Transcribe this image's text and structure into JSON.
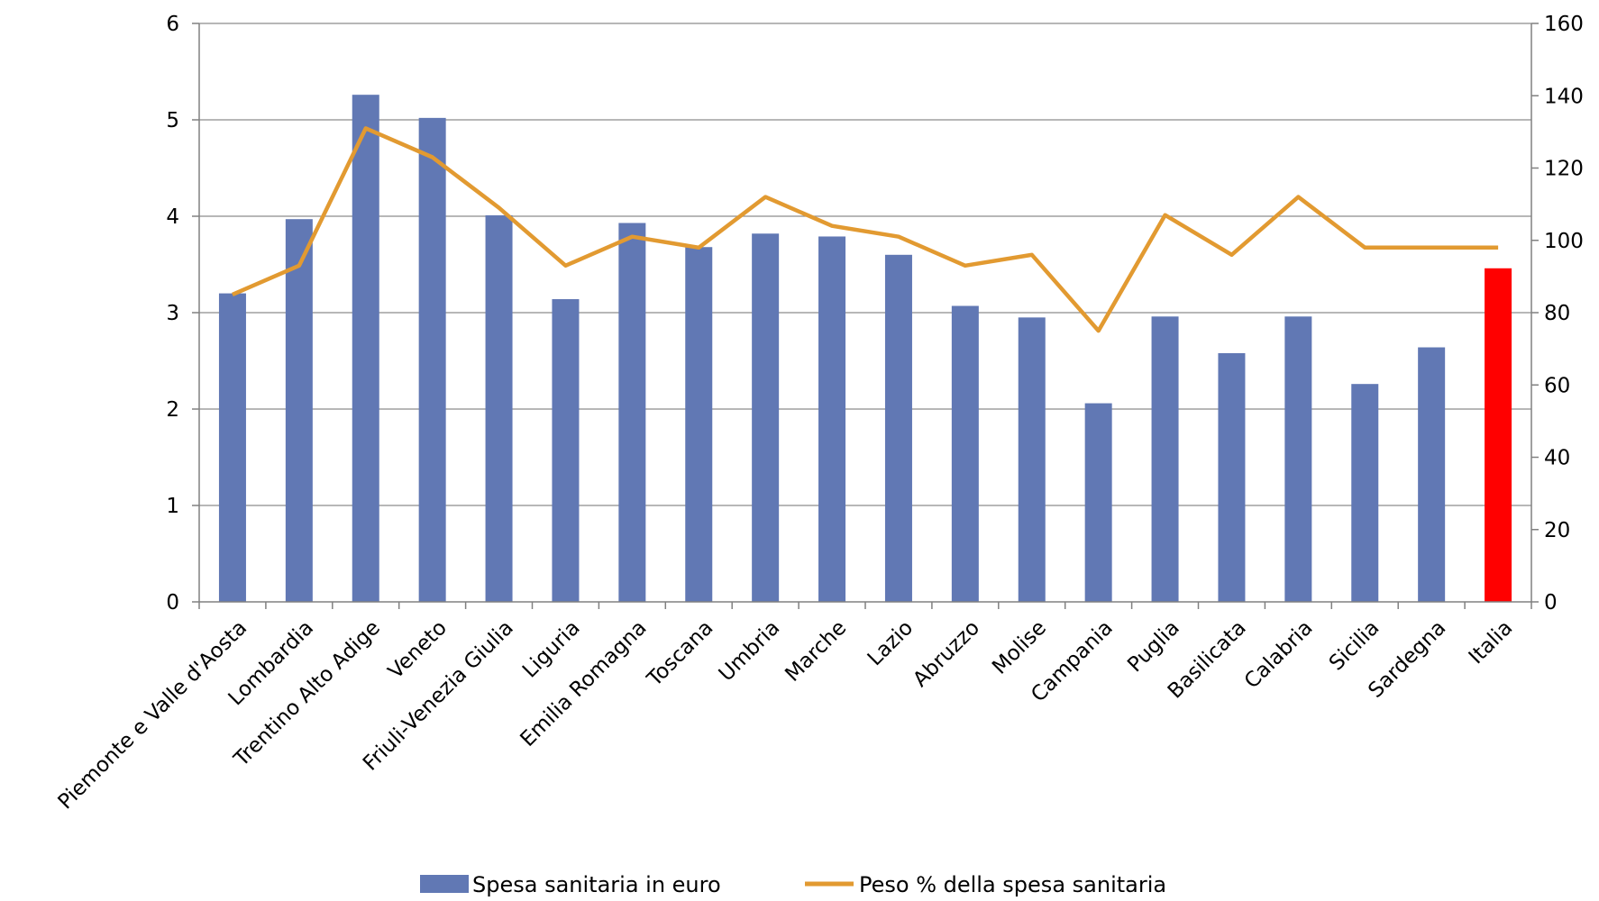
{
  "chart_data": {
    "type": "bar",
    "categories": [
      "Piemonte e Valle d'Aosta",
      "Lombardia",
      "Trentino Alto Adige",
      "Veneto",
      "Friuli-Venezia Giulia",
      "Liguria",
      "Emilia Romagna",
      "Toscana",
      "Umbria",
      "Marche",
      "Lazio",
      "Abruzzo",
      "Molise",
      "Campania",
      "Puglia",
      "Basilicata",
      "Calabria",
      "Sicilia",
      "Sardegna",
      "Italia"
    ],
    "series": [
      {
        "name": "Spesa sanitaria in euro",
        "type": "bar",
        "axis": "left",
        "color": "#6178B4",
        "highlight_color": "#FF0000",
        "highlight_index": 19,
        "values": [
          3.2,
          3.97,
          5.26,
          5.02,
          4.01,
          3.14,
          3.93,
          3.68,
          3.82,
          3.79,
          3.6,
          3.07,
          2.95,
          2.06,
          2.96,
          2.58,
          2.96,
          2.26,
          2.64,
          3.46
        ]
      },
      {
        "name": "Peso % della spesa sanitaria",
        "type": "line",
        "axis": "right",
        "color": "#E29A31",
        "values": [
          85,
          93,
          131,
          123,
          109,
          93,
          101,
          98,
          112,
          104,
          101,
          93,
          96,
          75,
          107,
          96,
          112,
          98,
          98,
          98
        ]
      }
    ],
    "y_left": {
      "min": 0,
      "max": 6,
      "ticks": [
        "0",
        "1",
        "2",
        "3",
        "4",
        "5",
        "6"
      ]
    },
    "y_right": {
      "min": 0,
      "max": 160,
      "ticks": [
        "0",
        "20",
        "40",
        "60",
        "80",
        "100",
        "120",
        "140",
        "160"
      ]
    },
    "grid": true,
    "legend_position": "bottom"
  }
}
